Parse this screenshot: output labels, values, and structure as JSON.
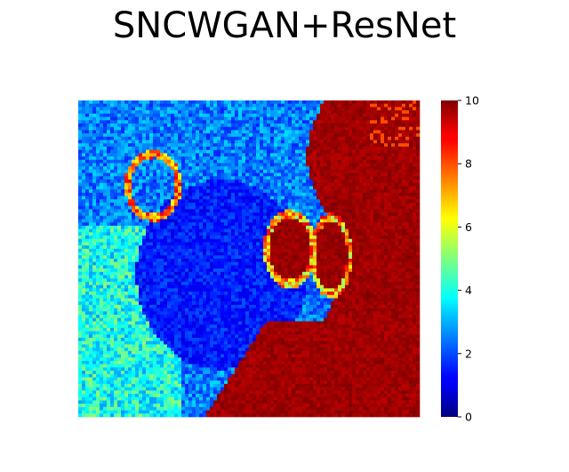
{
  "chart_data": {
    "type": "heatmap",
    "title": "SNCWGAN+ResNet",
    "colormap": "jet",
    "vmin": 0,
    "vmax": 10,
    "colorbar": {
      "ticks": [
        0,
        2,
        4,
        6,
        8,
        10
      ],
      "tick_labels": [
        "0",
        "2",
        "4",
        "6",
        "8",
        "10"
      ]
    },
    "axes_visible": false,
    "grid_size": [
      96,
      96
    ],
    "value_field": {
      "background": 2.5,
      "low_region": 1.5,
      "high_region": 10,
      "ring_value": 6,
      "noise": 0.9
    }
  }
}
